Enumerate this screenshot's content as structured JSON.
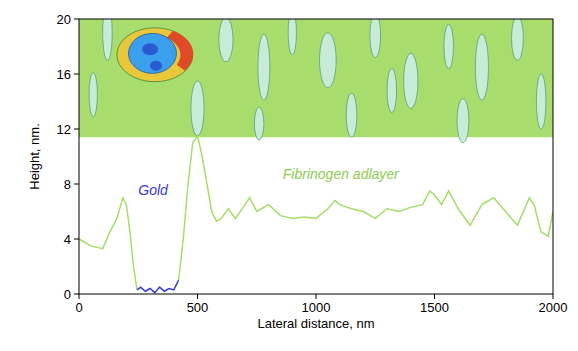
{
  "chart_data": {
    "type": "line",
    "x_label": "Lateral distance, nm",
    "y_label": "Height, nm.",
    "annotations": [
      "Gold",
      "Fibrinogen adlayer"
    ],
    "x": [
      0,
      20,
      50,
      100,
      130,
      160,
      185,
      200,
      215,
      230,
      245,
      260,
      280,
      300,
      320,
      340,
      360,
      380,
      400,
      420,
      440,
      460,
      480,
      500,
      520,
      540,
      560,
      580,
      600,
      630,
      660,
      700,
      720,
      750,
      800,
      850,
      900,
      950,
      1000,
      1050,
      1080,
      1100,
      1150,
      1200,
      1250,
      1300,
      1350,
      1400,
      1450,
      1480,
      1500,
      1530,
      1560,
      1600,
      1650,
      1700,
      1750,
      1800,
      1850,
      1900,
      1920,
      1950,
      1980,
      2000
    ],
    "series": [
      {
        "name": "Fibrinogen adlayer",
        "color": "#a6dc6a",
        "values": [
          4,
          3.8,
          3.5,
          3.3,
          4.5,
          5.5,
          7,
          6.5,
          4.5,
          2,
          0.3,
          null,
          null,
          null,
          null,
          null,
          null,
          null,
          null,
          1,
          4,
          8,
          11,
          11.5,
          10,
          8,
          6,
          5.3,
          5.5,
          6.2,
          5.5,
          6.5,
          7,
          6,
          6.5,
          5.7,
          5.5,
          5.6,
          5.5,
          6.2,
          6.8,
          6.5,
          6.2,
          6,
          5.5,
          6.2,
          6,
          6.3,
          6.5,
          7.5,
          7.2,
          6.5,
          7.5,
          6.2,
          5,
          6.5,
          7,
          6,
          5,
          7,
          6.5,
          4.5,
          4.2,
          6
        ]
      },
      {
        "name": "Gold",
        "color": "#3a3ad8",
        "values": [
          null,
          null,
          null,
          null,
          null,
          null,
          null,
          null,
          null,
          null,
          0.3,
          0.5,
          0.2,
          0.4,
          0.1,
          0.5,
          0.2,
          0.4,
          0.3,
          1,
          null,
          null,
          null,
          null,
          null,
          null,
          null,
          null,
          null,
          null,
          null,
          null,
          null,
          null,
          null,
          null,
          null,
          null,
          null,
          null,
          null,
          null,
          null,
          null,
          null,
          null,
          null,
          null,
          null,
          null,
          null,
          null,
          null,
          null,
          null,
          null,
          null,
          null,
          null,
          null,
          null,
          null,
          null,
          null
        ]
      }
    ],
    "xlim": [
      0,
      2000
    ],
    "ylim": [
      0,
      20
    ],
    "xticks": [
      0,
      500,
      1000,
      1500,
      2000
    ],
    "yticks": [
      0,
      4,
      8,
      12,
      16,
      20
    ],
    "grid": false
  }
}
